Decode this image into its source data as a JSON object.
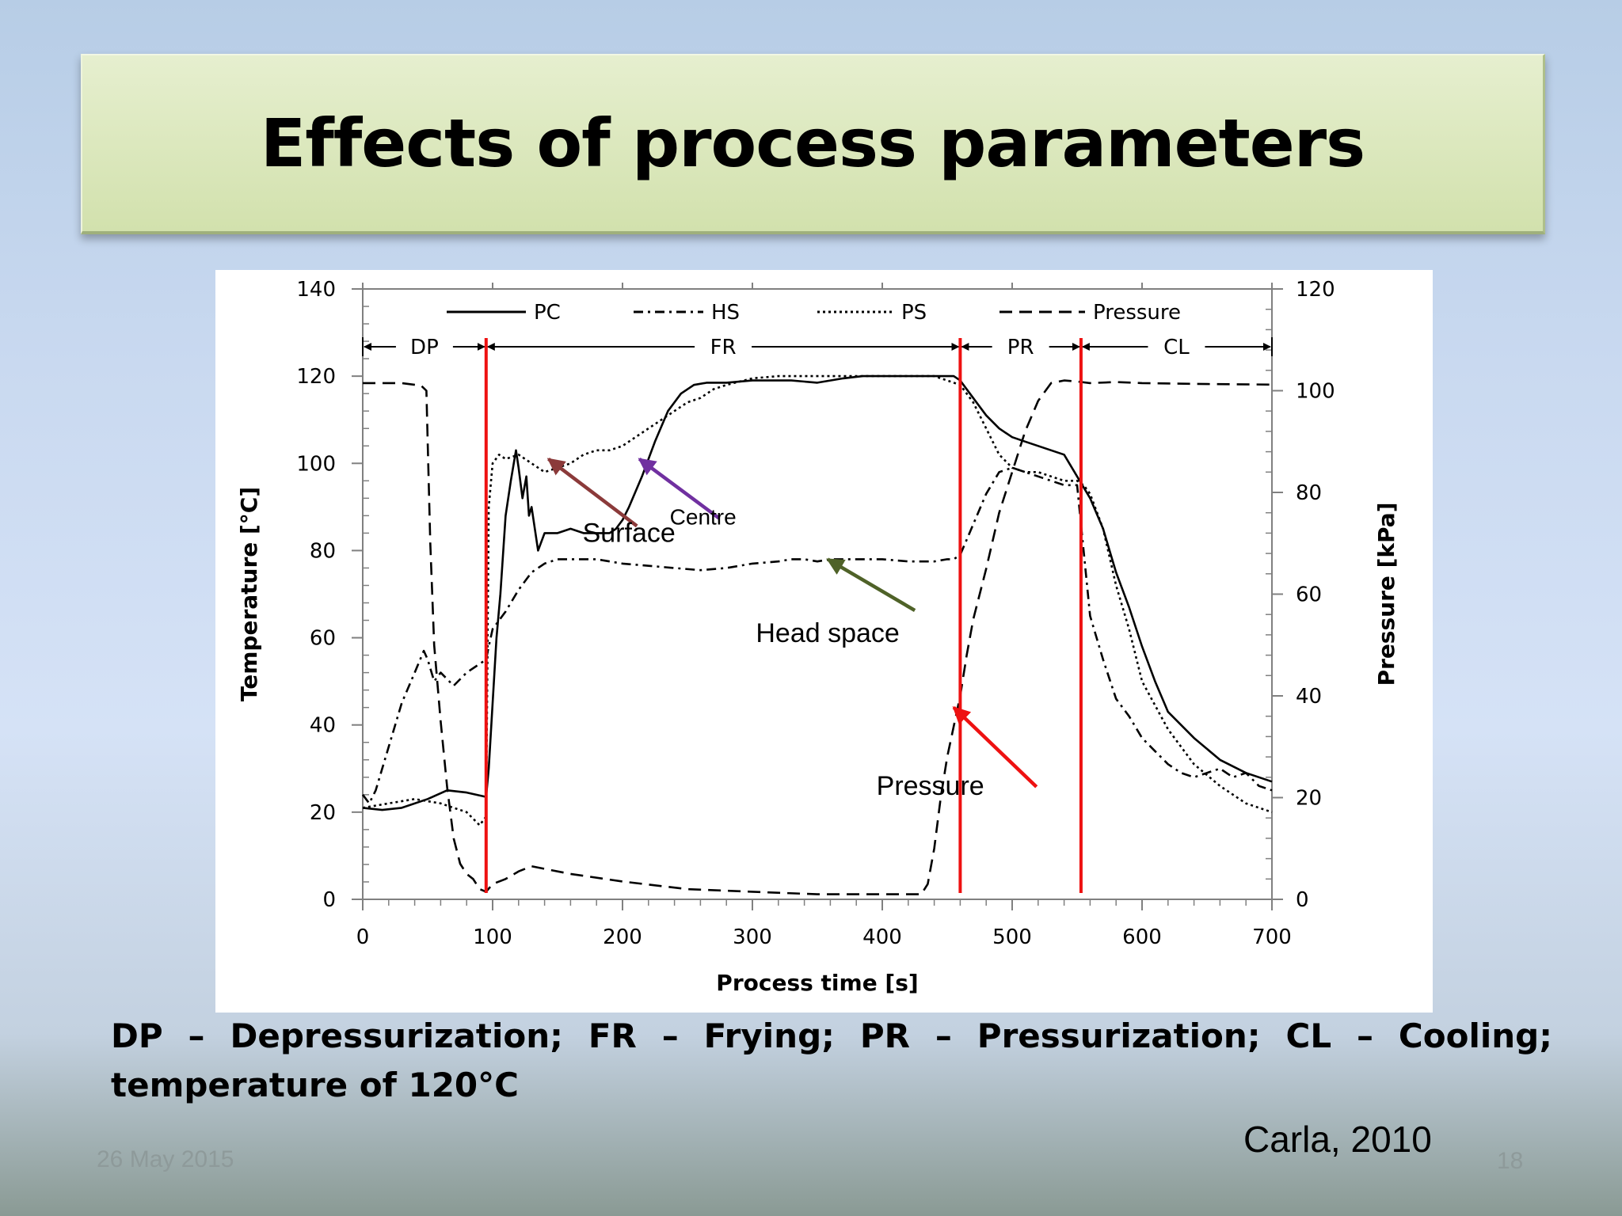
{
  "slide": {
    "title": "Effects of process parameters",
    "caption": "DP – Depressurization; FR – Frying; PR – Pressurization; CL – Cooling; temperature of 120°C",
    "credit": "Carla, 2010",
    "date": "26 May 2015",
    "page_number": "18"
  },
  "chart_data": {
    "type": "line",
    "title": "",
    "xlabel": "Process time [s]",
    "ylabel": "Temperature [°C]",
    "ylabel_right": "Pressure [kPa]",
    "xlim": [
      0,
      700
    ],
    "ylim": [
      0,
      140
    ],
    "ylim_right": [
      0,
      120
    ],
    "x_ticks": [
      0,
      100,
      200,
      300,
      400,
      500,
      600,
      700
    ],
    "y_ticks": [
      0,
      20,
      40,
      60,
      80,
      100,
      120,
      140
    ],
    "y_ticks_right": [
      0,
      20,
      40,
      60,
      80,
      100,
      120
    ],
    "grid": false,
    "legend_position": "top",
    "legend": [
      {
        "name": "PC",
        "style": "solid"
      },
      {
        "name": "HS",
        "style": "dashdot"
      },
      {
        "name": "PS",
        "style": "dotted"
      },
      {
        "name": "Pressure",
        "style": "dashed"
      }
    ],
    "phases": [
      {
        "label": "DP",
        "start": 0,
        "end": 95
      },
      {
        "label": "FR",
        "start": 95,
        "end": 460
      },
      {
        "label": "PR",
        "start": 460,
        "end": 553
      },
      {
        "label": "CL",
        "start": 553,
        "end": 700
      }
    ],
    "phase_boundaries": [
      95,
      460,
      553
    ],
    "phase_line_color": "#ee1111",
    "series": [
      {
        "name": "PC",
        "axis": "left",
        "x": [
          0,
          15,
          30,
          50,
          65,
          80,
          95,
          97,
          100,
          103,
          106,
          110,
          114,
          118,
          120,
          123,
          126,
          128,
          130,
          135,
          140,
          145,
          150,
          160,
          170,
          180,
          190,
          195,
          200,
          205,
          215,
          225,
          235,
          245,
          255,
          265,
          280,
          300,
          330,
          350,
          370,
          385,
          400,
          420,
          440,
          450,
          455,
          460,
          465,
          470,
          480,
          490,
          500,
          510,
          520,
          530,
          540,
          550,
          560,
          570,
          580,
          590,
          600,
          610,
          620,
          640,
          660,
          680,
          700
        ],
        "y": [
          21,
          20.5,
          21,
          23,
          25,
          24.5,
          23.5,
          30,
          45,
          60,
          70,
          88,
          96,
          103,
          99,
          92,
          97,
          88,
          90,
          80,
          84,
          84,
          84,
          85,
          84,
          84,
          84,
          85,
          87,
          90,
          97,
          105,
          112,
          116,
          118,
          118.5,
          118.5,
          119,
          119,
          118.5,
          119.5,
          120,
          120,
          120,
          120,
          120,
          120,
          119,
          117,
          115,
          111,
          108,
          106,
          105,
          104,
          103,
          102,
          97,
          92,
          85,
          75,
          67,
          58,
          50,
          43,
          37,
          32,
          29,
          27
        ]
      },
      {
        "name": "HS",
        "axis": "left",
        "x": [
          0,
          5,
          10,
          20,
          30,
          40,
          47,
          50,
          55,
          60,
          70,
          80,
          90,
          95,
          97,
          100,
          110,
          120,
          130,
          140,
          150,
          160,
          170,
          180,
          200,
          220,
          240,
          260,
          280,
          300,
          320,
          330,
          340,
          350,
          360,
          370,
          380,
          400,
          420,
          440,
          450,
          455,
          460,
          470,
          480,
          490,
          500,
          510,
          520,
          530,
          540,
          550,
          555,
          560,
          570,
          580,
          590,
          600,
          610,
          620,
          630,
          640,
          660,
          670,
          680,
          690,
          700
        ],
        "y": [
          24,
          22,
          25,
          35,
          45,
          52,
          57,
          55,
          50,
          52,
          49,
          52,
          54,
          55,
          58,
          62,
          66,
          71,
          75,
          77,
          78,
          78,
          78,
          78,
          77,
          76.5,
          76,
          75.5,
          76,
          77,
          77.5,
          78,
          78,
          77.5,
          78,
          78,
          78,
          78,
          77.5,
          77.5,
          78,
          78,
          79,
          86,
          93,
          98,
          99,
          98,
          97,
          96,
          95,
          95,
          80,
          65,
          55,
          46,
          42,
          37,
          34,
          31,
          29,
          28,
          30,
          28,
          29,
          26,
          25
        ]
      },
      {
        "name": "PS",
        "axis": "left",
        "x": [
          0,
          20,
          40,
          60,
          80,
          90,
          95,
          97,
          100,
          105,
          110,
          120,
          130,
          140,
          150,
          160,
          170,
          180,
          190,
          200,
          210,
          220,
          230,
          240,
          250,
          260,
          270,
          280,
          300,
          320,
          340,
          360,
          380,
          400,
          420,
          440,
          450,
          460,
          470,
          480,
          490,
          500,
          510,
          520,
          530,
          540,
          550,
          555,
          560,
          570,
          580,
          590,
          600,
          620,
          640,
          660,
          680,
          700
        ],
        "y": [
          21,
          22,
          23,
          22,
          20,
          17,
          19,
          90,
          100,
          102,
          101,
          102,
          100,
          98,
          99,
          100,
          102,
          103,
          103,
          104,
          106,
          108,
          110,
          112,
          114,
          115,
          117,
          118,
          119.5,
          120,
          120,
          120,
          120,
          120,
          120,
          120,
          119,
          118,
          114,
          108,
          102,
          99,
          98,
          98,
          97,
          96,
          96,
          95,
          93,
          85,
          72,
          62,
          50,
          39,
          31,
          26,
          22,
          20
        ]
      },
      {
        "name": "Pressure",
        "axis": "right",
        "x": [
          0,
          15,
          30,
          45,
          49,
          50,
          52,
          55,
          60,
          65,
          70,
          75,
          80,
          85,
          90,
          95,
          100,
          110,
          120,
          130,
          140,
          160,
          200,
          250,
          300,
          350,
          400,
          420,
          430,
          435,
          440,
          445,
          450,
          455,
          460,
          465,
          470,
          480,
          490,
          500,
          510,
          520,
          530,
          540,
          550,
          560,
          580,
          600,
          650,
          700
        ],
        "y": [
          101.5,
          101.5,
          101.5,
          101,
          100,
          90,
          70,
          50,
          35,
          22,
          12,
          7,
          5,
          4,
          2,
          1.5,
          3,
          4,
          5.5,
          6.5,
          6,
          5,
          3.5,
          2,
          1.5,
          1,
          1,
          1,
          1,
          3,
          10,
          20,
          28,
          34,
          40,
          48,
          55,
          65,
          76,
          84,
          92,
          98,
          101.5,
          102,
          101.8,
          101.5,
          101.7,
          101.5,
          101.3,
          101.2
        ]
      }
    ],
    "annotations": [
      {
        "text": "Surface",
        "x": 205,
        "y": 82,
        "arrow_to": [
          143,
          101
        ],
        "color": "#8b3a3a"
      },
      {
        "text": "Centre",
        "x": 262,
        "y": 86,
        "arrow_to": [
          213,
          101
        ],
        "color": "#7030a0"
      },
      {
        "text": "Head space",
        "x": 358,
        "y": 59,
        "arrow_to": [
          358,
          78
        ],
        "color": "#4f6228"
      },
      {
        "text": "Pressure",
        "x": 437,
        "y": 24,
        "arrow_to": [
          455,
          44
        ],
        "color": "#ee1111"
      }
    ]
  }
}
